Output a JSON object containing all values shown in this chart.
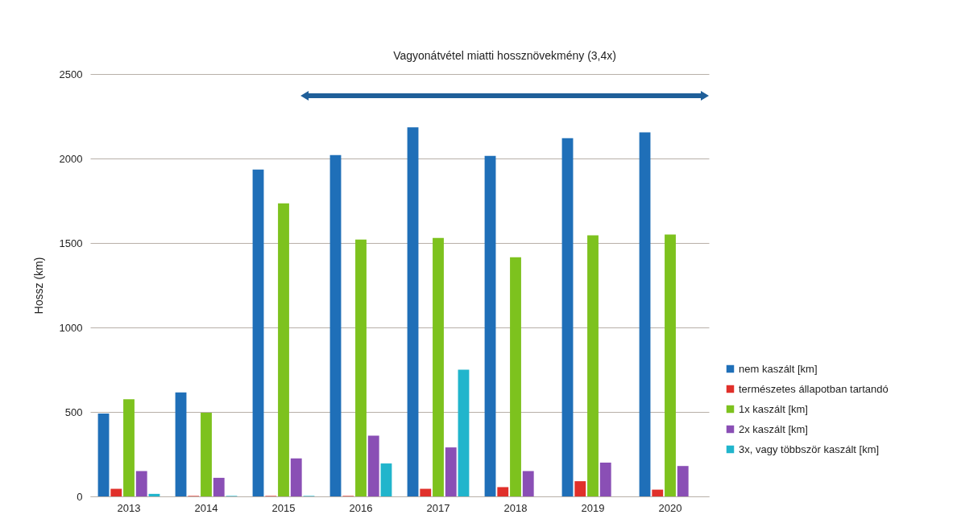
{
  "chart_data": {
    "type": "bar",
    "ylabel": "Hossz (km)",
    "categories": [
      "2013",
      "2014",
      "2015",
      "2016",
      "2017",
      "2018",
      "2019",
      "2020"
    ],
    "series": [
      {
        "name": "nem kaszált [km]",
        "color": "#1f6fb8",
        "values": [
          490,
          615,
          1935,
          2020,
          2185,
          2015,
          2120,
          2155
        ]
      },
      {
        "name": "természetes állapotban tartandó",
        "color": "#e0302a",
        "values": [
          45,
          3,
          3,
          3,
          45,
          55,
          90,
          40
        ]
      },
      {
        "name": "1x kaszált [km]",
        "color": "#7dc21e",
        "values": [
          575,
          495,
          1735,
          1520,
          1530,
          1415,
          1545,
          1550
        ]
      },
      {
        "name": "2x kaszált [km]",
        "color": "#8a4fb5",
        "values": [
          150,
          110,
          225,
          360,
          290,
          150,
          200,
          180
        ]
      },
      {
        "name": "3x, vagy többször kaszált [km]",
        "color": "#21b5cc",
        "values": [
          15,
          3,
          3,
          195,
          750,
          0,
          0,
          0
        ]
      }
    ],
    "ylim": [
      0,
      2500
    ],
    "yticks": [
      0,
      500,
      1000,
      1500,
      2000,
      2500
    ],
    "grid": "y",
    "legend": "right",
    "annotations": [
      "Vagyonátvétel miatti hossznövekmény (3,4x)"
    ]
  }
}
